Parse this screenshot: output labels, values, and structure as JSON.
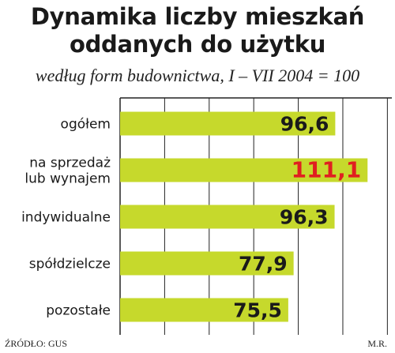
{
  "title_line1": "Dynamika liczby mieszkań",
  "title_line2": "oddanych do użytku",
  "subtitle": "według form budownictwa, I – VII 2004 = 100",
  "source": "ŹRÓDŁO: GUS",
  "author": "M.R.",
  "chart_data": {
    "type": "bar",
    "orientation": "horizontal",
    "title": "Dynamika liczby mieszkań oddanych do użytku",
    "subtitle": "według form budownictwa, I – VII 2004 = 100",
    "categories": [
      [
        "ogółem"
      ],
      [
        "na sprzedaż",
        "lub wynajem"
      ],
      [
        "indywidualne"
      ],
      [
        "spółdzielcze"
      ],
      [
        "pozostałe"
      ]
    ],
    "values": [
      96.6,
      111.1,
      96.3,
      77.9,
      75.5
    ],
    "value_labels": [
      "96,6",
      "111,1",
      "96,3",
      "77,9",
      "75,5"
    ],
    "highlight_index": 1,
    "xlim": [
      0,
      122
    ],
    "grid": true,
    "colors": {
      "bar": "#c6d92c",
      "value_text": "#1a1a1a",
      "highlight_text": "#e02020",
      "grid": "#222222"
    }
  }
}
